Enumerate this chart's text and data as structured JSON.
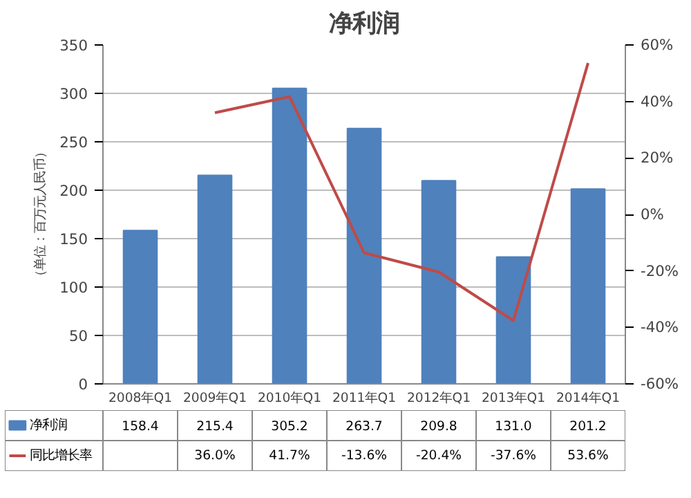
{
  "chart_data": {
    "type": "bar",
    "title": "净利润",
    "ylabel": "（单位：百万元人民币）",
    "categories": [
      "2008年Q1",
      "2009年Q1",
      "2010年Q1",
      "2011年Q1",
      "2012年Q1",
      "2013年Q1",
      "2014年Q1"
    ],
    "series": [
      {
        "name": "净利润",
        "color": "#4f81bd",
        "values": [
          158.4,
          215.4,
          305.2,
          263.7,
          209.8,
          131.0,
          201.2
        ],
        "value_labels": [
          "158.4",
          "215.4",
          "305.2",
          "263.7",
          "209.8",
          "131.0",
          "201.2"
        ]
      },
      {
        "name": "同比增长率",
        "type": "line",
        "axis": "y2",
        "color": "#be4b48",
        "values": [
          null,
          36.0,
          41.7,
          -13.6,
          -20.4,
          -37.6,
          53.6
        ],
        "value_labels": [
          null,
          "36.0%",
          "41.7%",
          "-13.6%",
          "-20.4%",
          "-37.6%",
          "53.6%"
        ]
      }
    ],
    "ylim": [
      0,
      350
    ],
    "yticks": [
      0,
      50,
      100,
      150,
      200,
      250,
      300,
      350
    ],
    "y2lim": [
      -60,
      60
    ],
    "y2ticks": [
      {
        "value": -60,
        "label": "-60%"
      },
      {
        "value": -40,
        "label": "-40%"
      },
      {
        "value": -20,
        "label": "-20%"
      },
      {
        "value": 0,
        "label": "0%"
      },
      {
        "value": 20,
        "label": "20%"
      },
      {
        "value": 40,
        "label": "40%"
      },
      {
        "value": 60,
        "label": "60%"
      }
    ],
    "grid": "y",
    "legend": "bottom"
  }
}
